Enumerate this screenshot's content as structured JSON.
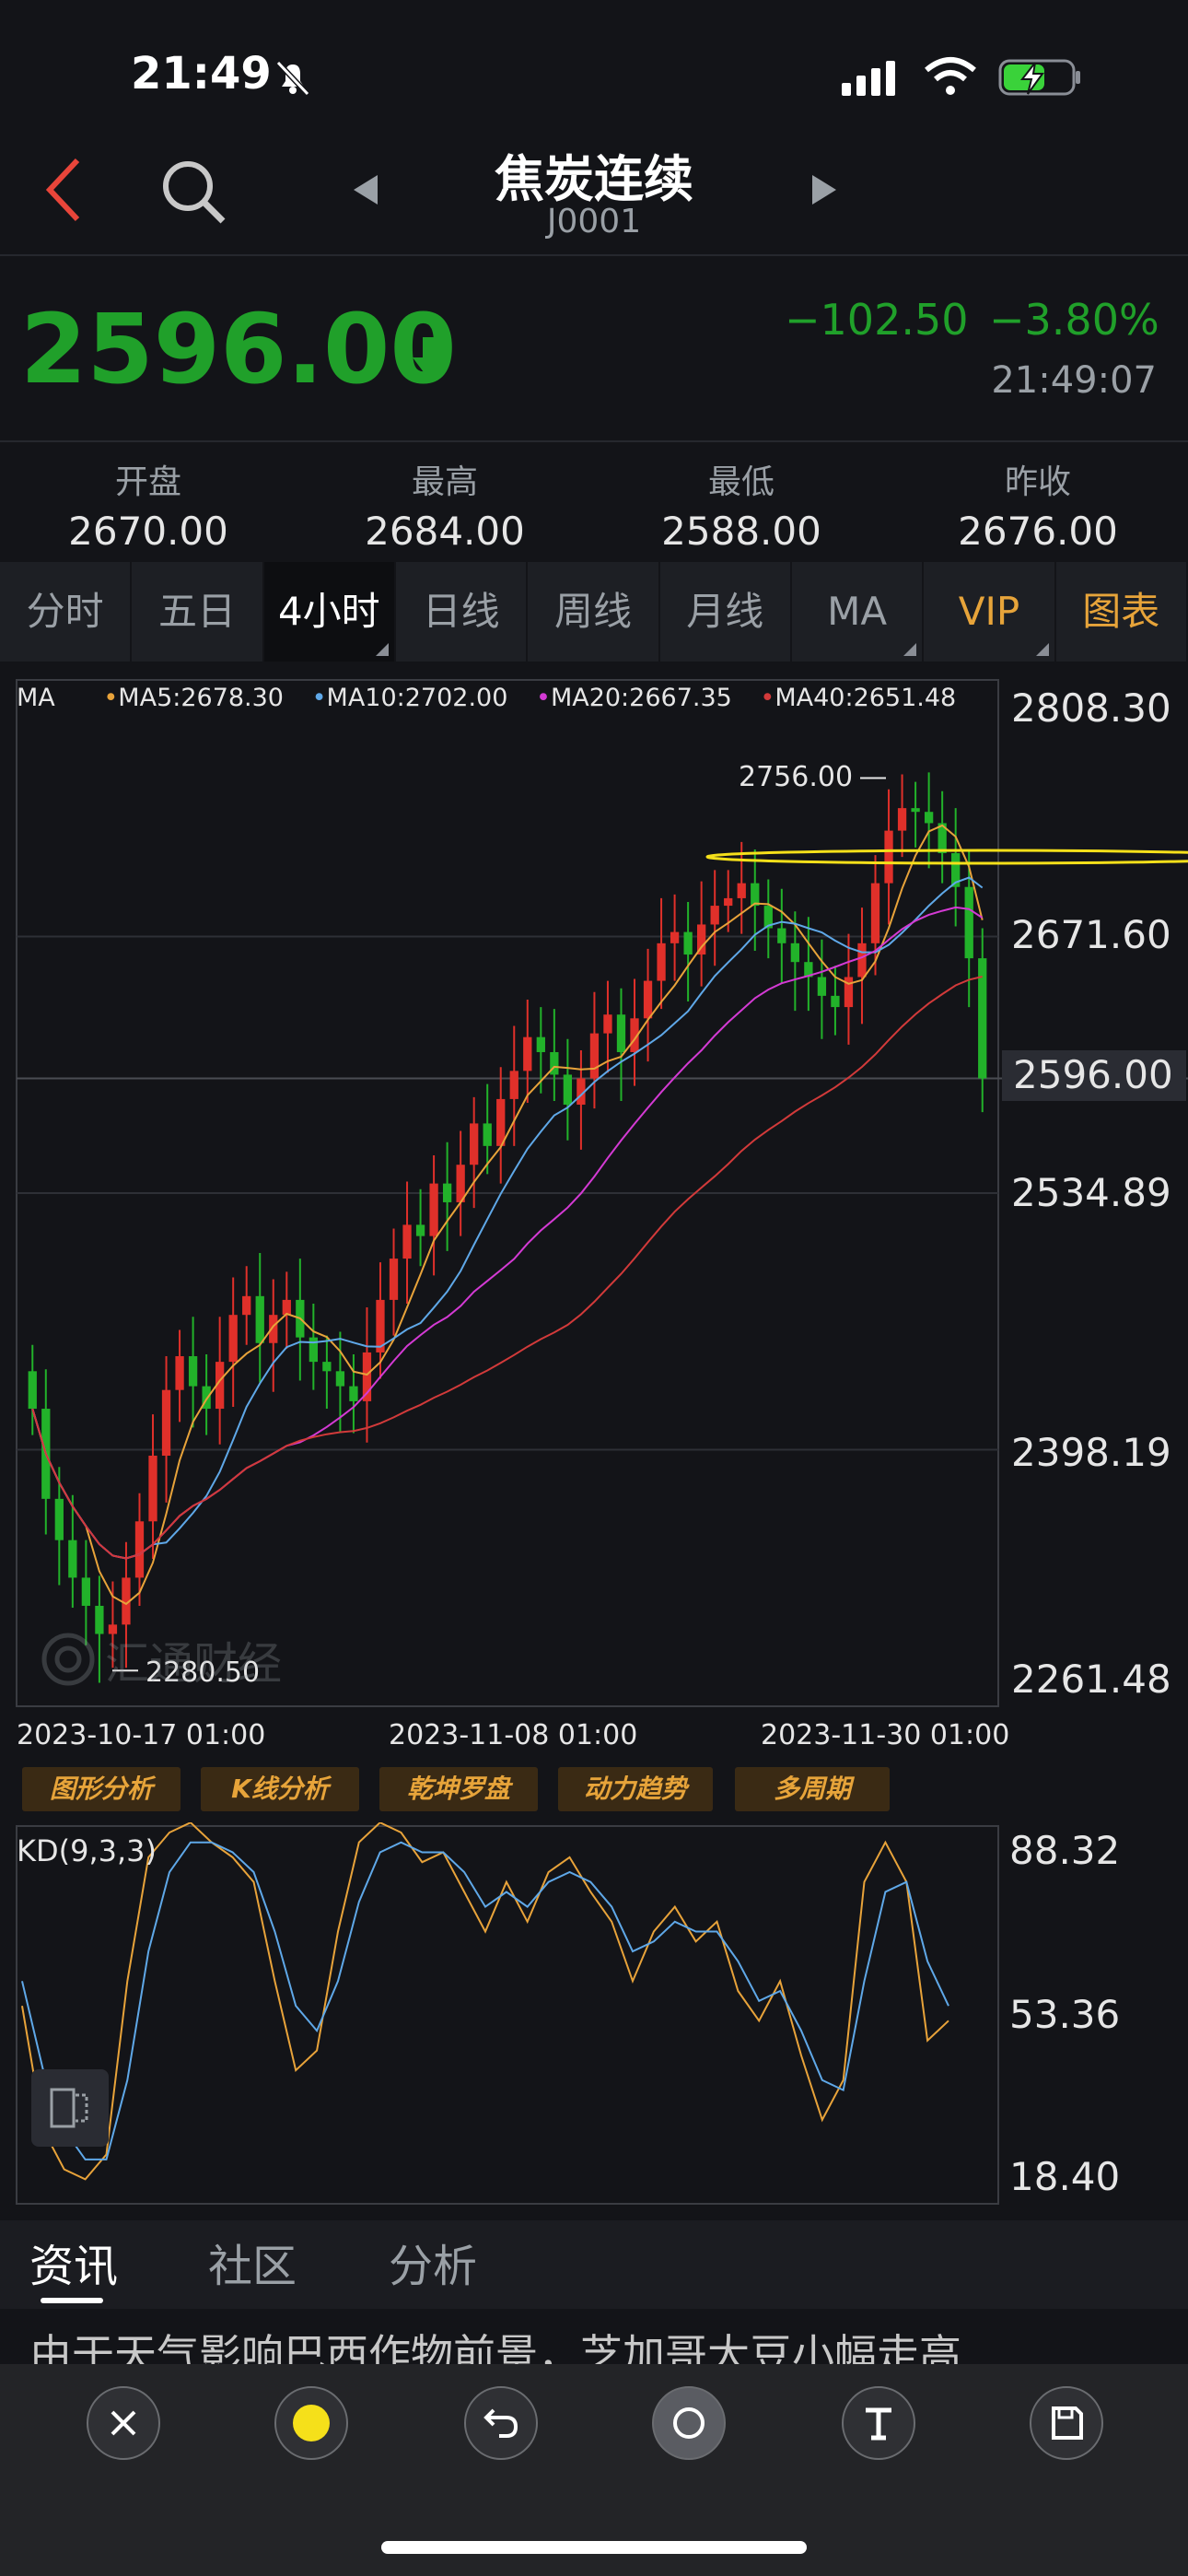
{
  "status": {
    "time": "21:49"
  },
  "header": {
    "title": "焦炭连续",
    "code": "J0001"
  },
  "quote": {
    "price": "2596.00",
    "change": "−102.50",
    "change_pct": "−3.80%",
    "time": "21:49:07",
    "color_down": "#20a02a"
  },
  "ohlc": [
    {
      "label": "开盘",
      "value": "2670.00"
    },
    {
      "label": "最高",
      "value": "2684.00"
    },
    {
      "label": "最低",
      "value": "2588.00"
    },
    {
      "label": "昨收",
      "value": "2676.00"
    }
  ],
  "tabs": [
    "分时",
    "五日",
    "4小时",
    "日线",
    "周线",
    "月线",
    "MA",
    "VIP",
    "图表"
  ],
  "active_tab": "4小时",
  "ma_legend": {
    "ma": "MA",
    "ma5": "MA5:2678.30",
    "ma10": "MA10:2702.00",
    "ma20": "MA20:2667.35",
    "ma40": "MA40:2651.48"
  },
  "price_axis": [
    "2808.30",
    "2671.60",
    "2596.00",
    "2534.89",
    "2398.19",
    "2261.48"
  ],
  "annotations": {
    "high": "2756.00",
    "low": "2280.50"
  },
  "dates": [
    "2023-10-17 01:00",
    "2023-11-08 01:00",
    "2023-11-30 01:00"
  ],
  "analysis_buttons": [
    "图形分析",
    "K线分析",
    "乾坤罗盘",
    "动力趋势",
    "多周期"
  ],
  "kd": {
    "label": "KD(9,3,3)",
    "axis": [
      "88.32",
      "53.36",
      "18.40"
    ]
  },
  "watermark": "汇通财经",
  "news_tabs": [
    "资讯",
    "社区",
    "分析"
  ],
  "news_headline": "由于天气影响巴西作物前景，芝加哥大豆小幅走高",
  "toolbar_icons": [
    "close-icon",
    "color-dot-icon",
    "undo-icon",
    "circle-icon",
    "text-icon",
    "save-icon"
  ],
  "chart_data": {
    "type": "candlestick",
    "ylim": [
      2261.48,
      2808.3
    ],
    "last": 2596.0,
    "high": 2756.0,
    "low": 2280.5,
    "ma_series": [
      {
        "name": "MA5",
        "color": "#e8a33a",
        "last": 2678.3
      },
      {
        "name": "MA10",
        "color": "#5fa8e8",
        "last": 2702.0
      },
      {
        "name": "MA20",
        "color": "#d43ad4",
        "last": 2667.35
      },
      {
        "name": "MA40",
        "color": "#d23a3a",
        "last": 2651.48
      }
    ],
    "closes": [
      2420,
      2372,
      2350,
      2330,
      2315,
      2300,
      2305,
      2330,
      2360,
      2395,
      2430,
      2448,
      2432,
      2420,
      2445,
      2470,
      2480,
      2455,
      2470,
      2478,
      2458,
      2445,
      2440,
      2432,
      2424,
      2450,
      2478,
      2500,
      2518,
      2512,
      2540,
      2530,
      2550,
      2572,
      2560,
      2585,
      2600,
      2618,
      2610,
      2598,
      2582,
      2596,
      2620,
      2630,
      2610,
      2628,
      2648,
      2668,
      2674,
      2662,
      2678,
      2688,
      2692,
      2700,
      2688,
      2676,
      2668,
      2658,
      2650,
      2640,
      2634,
      2650,
      2668,
      2700,
      2728,
      2740,
      2738,
      2732,
      2716,
      2698,
      2660,
      2596
    ],
    "kd": {
      "ylim": [
        18.4,
        88.32
      ],
      "k": [
        55,
        30,
        22,
        20,
        25,
        60,
        85,
        90,
        92,
        88,
        85,
        80,
        60,
        42,
        46,
        70,
        88,
        92,
        90,
        84,
        86,
        78,
        70,
        80,
        72,
        82,
        85,
        78,
        72,
        60,
        70,
        75,
        68,
        72,
        58,
        52,
        60,
        45,
        32,
        40,
        80,
        88,
        80,
        48,
        52
      ],
      "d": [
        60,
        42,
        30,
        24,
        24,
        40,
        66,
        82,
        88,
        88,
        86,
        82,
        70,
        55,
        50,
        60,
        76,
        86,
        88,
        86,
        86,
        82,
        75,
        78,
        75,
        80,
        82,
        80,
        75,
        66,
        68,
        72,
        70,
        70,
        64,
        56,
        58,
        50,
        40,
        38,
        60,
        78,
        80,
        64,
        55
      ]
    }
  }
}
